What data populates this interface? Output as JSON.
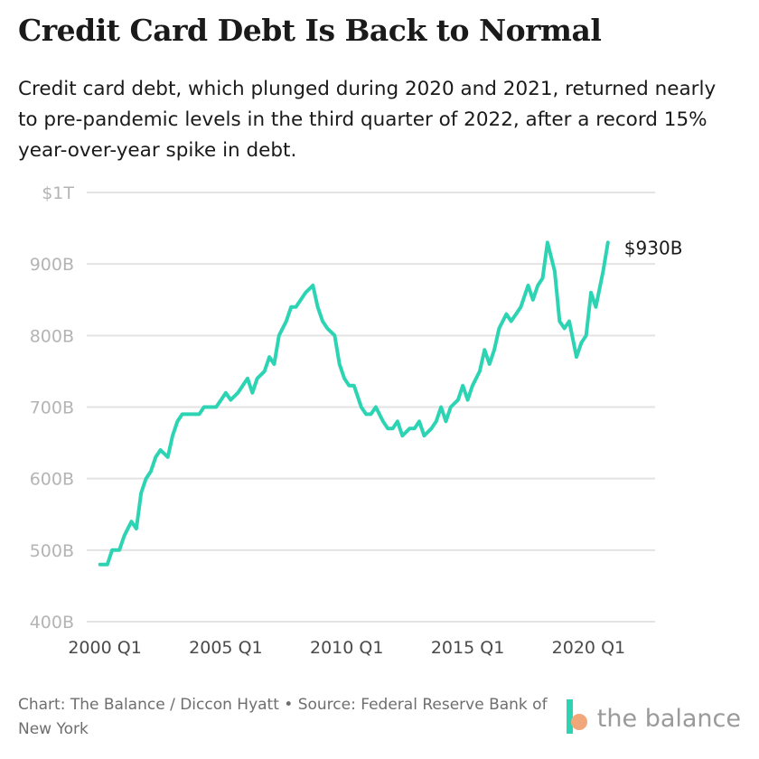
{
  "header": {
    "title": "Credit Card Debt Is Back to Normal",
    "subtitle": "Credit card debt, which plunged during 2020 and 2021, returned nearly to pre-pandemic levels in the third quarter of 2022, after a record 15% year-over-year spike in debt."
  },
  "footer": {
    "source": "Chart: The Balance / Diccon Hyatt • Source: Federal Reserve Bank of New York",
    "logo_text": "the balance"
  },
  "colors": {
    "line": "#2dd4b4",
    "grid": "#e3e3e3",
    "logo_accent": "#f2a77a"
  },
  "chart_data": {
    "type": "line",
    "title": "Credit Card Debt Is Back to Normal",
    "xlabel": "",
    "ylabel": "",
    "y_unit": "billions of US dollars",
    "ylim": [
      400,
      1000
    ],
    "y_ticks": [
      {
        "value": 1000,
        "label": "$1T"
      },
      {
        "value": 900,
        "label": "900B"
      },
      {
        "value": 800,
        "label": "800B"
      },
      {
        "value": 700,
        "label": "700B"
      },
      {
        "value": 600,
        "label": "600B"
      },
      {
        "value": 500,
        "label": "500B"
      },
      {
        "value": 400,
        "label": "400B"
      }
    ],
    "x_ticks": [
      {
        "value": 1999.0,
        "label": "2000 Q1"
      },
      {
        "value": 2004.0,
        "label": "2005 Q1"
      },
      {
        "value": 2009.0,
        "label": "2010 Q1"
      },
      {
        "value": 2014.0,
        "label": "2015 Q1"
      },
      {
        "value": 2019.0,
        "label": "2020 Q1"
      }
    ],
    "xlim": [
      1998.25,
      2021.75
    ],
    "end_label": "$930B",
    "series": [
      {
        "name": "Credit card debt",
        "points": [
          [
            1998.8,
            480
          ],
          [
            1999.1,
            480
          ],
          [
            1999.3,
            500
          ],
          [
            1999.6,
            500
          ],
          [
            1999.8,
            520
          ],
          [
            2000.1,
            540
          ],
          [
            2000.3,
            530
          ],
          [
            2000.5,
            580
          ],
          [
            2000.7,
            600
          ],
          [
            2000.9,
            610
          ],
          [
            2001.1,
            630
          ],
          [
            2001.3,
            640
          ],
          [
            2001.6,
            630
          ],
          [
            2001.8,
            660
          ],
          [
            2002.0,
            680
          ],
          [
            2002.2,
            690
          ],
          [
            2002.5,
            690
          ],
          [
            2002.7,
            690
          ],
          [
            2002.9,
            690
          ],
          [
            2003.1,
            700
          ],
          [
            2003.3,
            700
          ],
          [
            2003.6,
            700
          ],
          [
            2003.8,
            710
          ],
          [
            2004.0,
            720
          ],
          [
            2004.2,
            710
          ],
          [
            2004.5,
            720
          ],
          [
            2004.7,
            730
          ],
          [
            2004.9,
            740
          ],
          [
            2005.1,
            720
          ],
          [
            2005.3,
            740
          ],
          [
            2005.6,
            750
          ],
          [
            2005.8,
            770
          ],
          [
            2006.0,
            760
          ],
          [
            2006.2,
            800
          ],
          [
            2006.5,
            820
          ],
          [
            2006.7,
            840
          ],
          [
            2006.9,
            840
          ],
          [
            2007.1,
            850
          ],
          [
            2007.3,
            860
          ],
          [
            2007.6,
            870
          ],
          [
            2007.8,
            840
          ],
          [
            2008.0,
            820
          ],
          [
            2008.2,
            810
          ],
          [
            2008.5,
            800
          ],
          [
            2008.7,
            760
          ],
          [
            2008.9,
            740
          ],
          [
            2009.1,
            730
          ],
          [
            2009.3,
            730
          ],
          [
            2009.6,
            700
          ],
          [
            2009.8,
            690
          ],
          [
            2010.0,
            690
          ],
          [
            2010.2,
            700
          ],
          [
            2010.5,
            680
          ],
          [
            2010.7,
            670
          ],
          [
            2010.9,
            670
          ],
          [
            2011.1,
            680
          ],
          [
            2011.3,
            660
          ],
          [
            2011.6,
            670
          ],
          [
            2011.8,
            670
          ],
          [
            2012.0,
            680
          ],
          [
            2012.2,
            660
          ],
          [
            2012.5,
            670
          ],
          [
            2012.7,
            680
          ],
          [
            2012.9,
            700
          ],
          [
            2013.1,
            680
          ],
          [
            2013.3,
            700
          ],
          [
            2013.6,
            710
          ],
          [
            2013.8,
            730
          ],
          [
            2014.0,
            710
          ],
          [
            2014.2,
            730
          ],
          [
            2014.5,
            750
          ],
          [
            2014.7,
            780
          ],
          [
            2014.9,
            760
          ],
          [
            2015.1,
            780
          ],
          [
            2015.3,
            810
          ],
          [
            2015.6,
            830
          ],
          [
            2015.8,
            820
          ],
          [
            2016.0,
            830
          ],
          [
            2016.2,
            840
          ],
          [
            2016.5,
            870
          ],
          [
            2016.7,
            850
          ],
          [
            2016.9,
            870
          ],
          [
            2017.1,
            880
          ],
          [
            2017.3,
            930
          ],
          [
            2017.6,
            890
          ],
          [
            2017.8,
            820
          ],
          [
            2018.0,
            810
          ],
          [
            2018.2,
            820
          ],
          [
            2018.5,
            770
          ],
          [
            2018.7,
            790
          ],
          [
            2018.9,
            800
          ],
          [
            2019.1,
            860
          ],
          [
            2019.3,
            840
          ],
          [
            2019.6,
            890
          ],
          [
            2019.8,
            930
          ]
        ]
      }
    ]
  }
}
